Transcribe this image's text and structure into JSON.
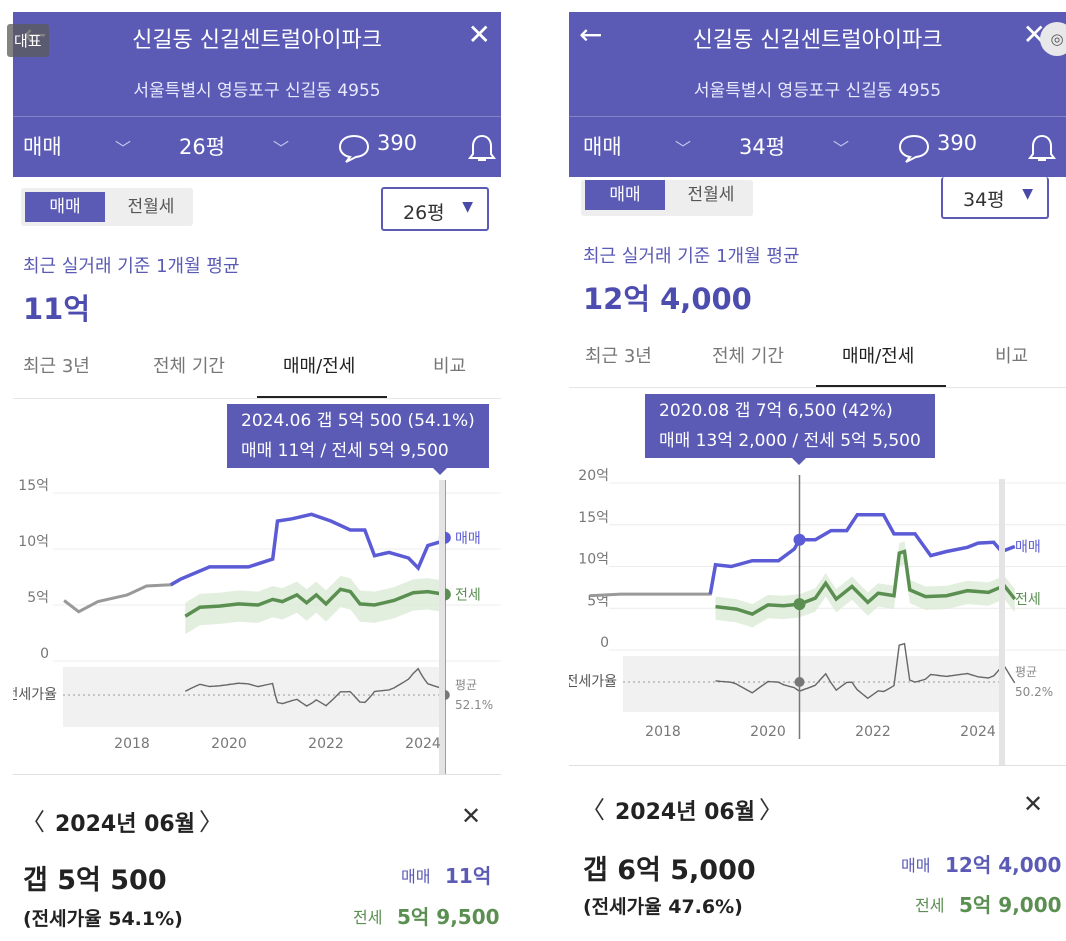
{
  "left": {
    "header": {
      "title": "신길동 신길센트럴아이파크",
      "address": "서울특별시 영등포구 신길동 4955",
      "badge": "대표",
      "trade_select": "매매",
      "area_select": "26평",
      "comment_count": "390"
    },
    "segment": {
      "sale": "매매",
      "rent": "전월세"
    },
    "area_dropdown": "26평",
    "recent_caption": "최근 실거래 기준 1개월 평균",
    "avg_price": "11억",
    "tabs": [
      "최근 3년",
      "전체 기간",
      "매매/전세",
      "비교"
    ],
    "tooltip": {
      "line1": "2024.06  갭 5억 500 (54.1%)",
      "line2": "매매 11억 / 전세 5억 9,500"
    },
    "chart_data": {
      "type": "line",
      "y_ticks": [
        "15억",
        "10억",
        "5억",
        "0"
      ],
      "ylim": [
        0,
        15
      ],
      "x_ticks": [
        "2018",
        "2020",
        "2022",
        "2024"
      ],
      "ratio_label": "전세가율",
      "avg_label": "평균",
      "avg_value": "52.1%",
      "sale_label": "매매",
      "jeonse_label": "전세",
      "sale_series": [
        [
          2016.6,
          5.4
        ],
        [
          2016.9,
          4.4
        ],
        [
          2017.3,
          5.3
        ],
        [
          2017.9,
          5.9
        ],
        [
          2018.3,
          6.7
        ],
        [
          2018.8,
          6.8
        ],
        [
          2019.0,
          7.3
        ],
        [
          2019.6,
          8.4
        ],
        [
          2020.4,
          8.4
        ],
        [
          2020.9,
          9.1
        ],
        [
          2021.0,
          12.5
        ],
        [
          2021.3,
          12.7
        ],
        [
          2021.7,
          13.1
        ],
        [
          2022.1,
          12.5
        ],
        [
          2022.5,
          11.7
        ],
        [
          2022.8,
          11.7
        ],
        [
          2023.0,
          9.4
        ],
        [
          2023.3,
          9.7
        ],
        [
          2023.7,
          9.2
        ],
        [
          2023.9,
          8.3
        ],
        [
          2024.1,
          10.3
        ],
        [
          2024.4,
          10.7
        ],
        [
          2024.45,
          11.0
        ]
      ],
      "jeonse_series": [
        [
          2019.1,
          4.0
        ],
        [
          2019.4,
          4.8
        ],
        [
          2019.8,
          4.9
        ],
        [
          2020.2,
          5.1
        ],
        [
          2020.6,
          5.0
        ],
        [
          2020.9,
          5.5
        ],
        [
          2021.1,
          5.3
        ],
        [
          2021.4,
          5.9
        ],
        [
          2021.6,
          5.2
        ],
        [
          2021.8,
          5.9
        ],
        [
          2022.0,
          5.1
        ],
        [
          2022.3,
          6.4
        ],
        [
          2022.5,
          6.2
        ],
        [
          2022.7,
          5.1
        ],
        [
          2023.0,
          5.0
        ],
        [
          2023.4,
          5.4
        ],
        [
          2023.8,
          6.1
        ],
        [
          2024.1,
          6.2
        ],
        [
          2024.45,
          5.95
        ]
      ],
      "marker_x": 2024.45
    },
    "bottom": {
      "month": "2024년 06월",
      "gap": "갭 5억 500",
      "ratio": "(전세가율 54.1%)",
      "sale_label": "매매",
      "sale_value": "11억",
      "jeonse_label": "전세",
      "jeonse_value": "5억 9,500"
    },
    "colors": {
      "brand": "#5b5bb6",
      "sale": "#5b5bd6",
      "jeonse": "#5b8f52",
      "history": "#999999"
    }
  },
  "right": {
    "header": {
      "title": "신길동 신길센트럴아이파크",
      "address": "서울특별시 영등포구 신길동 4955",
      "trade_select": "매매",
      "area_select": "34평",
      "comment_count": "390"
    },
    "segment": {
      "sale": "매매",
      "rent": "전월세"
    },
    "area_dropdown": "34평",
    "recent_caption": "최근 실거래 기준 1개월 평균",
    "avg_price": "12억 4,000",
    "tabs": [
      "최근 3년",
      "전체 기간",
      "매매/전세",
      "비교"
    ],
    "tooltip": {
      "line1": "2020.08  갭 7억 6,500 (42%)",
      "line2": "매매 13억 2,000 / 전세 5억 5,500"
    },
    "chart_data": {
      "type": "line",
      "y_ticks": [
        "20억",
        "15억",
        "10억",
        "5억",
        "0"
      ],
      "ylim": [
        0,
        20
      ],
      "x_ticks": [
        "2018",
        "2020",
        "2022",
        "2024"
      ],
      "ratio_label": "전세가율",
      "avg_label": "평균",
      "avg_value": "50.2%",
      "sale_label": "매매",
      "jeonse_label": "전세",
      "sale_series": [
        [
          2016.6,
          6.5
        ],
        [
          2017.2,
          6.7
        ],
        [
          2017.8,
          6.7
        ],
        [
          2018.4,
          6.7
        ],
        [
          2018.9,
          6.7
        ],
        [
          2019.0,
          10.2
        ],
        [
          2019.3,
          10.0
        ],
        [
          2019.7,
          10.7
        ],
        [
          2020.2,
          10.7
        ],
        [
          2020.5,
          12.1
        ],
        [
          2020.6,
          13.2
        ],
        [
          2020.9,
          13.2
        ],
        [
          2021.2,
          14.3
        ],
        [
          2021.5,
          14.3
        ],
        [
          2021.7,
          16.2
        ],
        [
          2022.2,
          16.2
        ],
        [
          2022.4,
          13.9
        ],
        [
          2022.8,
          13.9
        ],
        [
          2023.1,
          11.3
        ],
        [
          2023.4,
          11.8
        ],
        [
          2023.8,
          12.3
        ],
        [
          2024.0,
          12.8
        ],
        [
          2024.3,
          12.9
        ],
        [
          2024.45,
          11.8
        ],
        [
          2024.7,
          12.4
        ]
      ],
      "jeonse_series": [
        [
          2019.0,
          5.2
        ],
        [
          2019.4,
          4.9
        ],
        [
          2019.7,
          4.3
        ],
        [
          2020.0,
          5.4
        ],
        [
          2020.3,
          5.3
        ],
        [
          2020.6,
          5.5
        ],
        [
          2020.9,
          6.2
        ],
        [
          2021.1,
          8.0
        ],
        [
          2021.3,
          6.1
        ],
        [
          2021.6,
          7.6
        ],
        [
          2021.9,
          5.7
        ],
        [
          2022.1,
          6.8
        ],
        [
          2022.4,
          6.5
        ],
        [
          2022.5,
          11.6
        ],
        [
          2022.6,
          11.8
        ],
        [
          2022.7,
          7.2
        ],
        [
          2023.0,
          6.4
        ],
        [
          2023.4,
          6.5
        ],
        [
          2023.8,
          7.1
        ],
        [
          2024.2,
          6.9
        ],
        [
          2024.5,
          7.7
        ],
        [
          2024.7,
          6.1
        ]
      ],
      "marker_x": 2020.6
    },
    "bottom": {
      "month": "2024년 06월",
      "gap": "갭 6억 5,000",
      "ratio": "(전세가율 47.6%)",
      "sale_label": "매매",
      "sale_value": "12억 4,000",
      "jeonse_label": "전세",
      "jeonse_value": "5억 9,000"
    },
    "colors": {
      "brand": "#5b5bb6",
      "sale": "#5b5bd6",
      "jeonse": "#5b8f52",
      "history": "#999999"
    }
  }
}
